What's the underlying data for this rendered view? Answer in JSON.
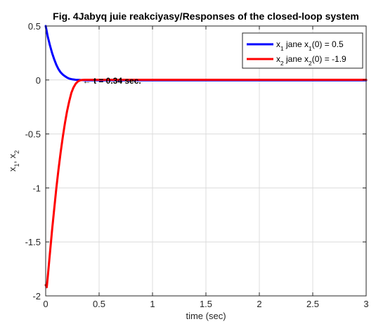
{
  "chart_data": {
    "type": "line",
    "title": "Fig. 4Jabyq juie reakciyasy/Responses of the closed-loop system",
    "xlabel": "time (sec)",
    "ylabel": {
      "parts": [
        {
          "text": "x"
        },
        {
          "text": "1",
          "sub": true
        },
        {
          "text": ", x"
        },
        {
          "text": "2",
          "sub": true
        }
      ]
    },
    "xlim": [
      0,
      3
    ],
    "ylim": [
      -2,
      0.5
    ],
    "xticks": [
      {
        "value": 0,
        "label": "0"
      },
      {
        "value": 0.5,
        "label": "0.5"
      },
      {
        "value": 1,
        "label": "1"
      },
      {
        "value": 1.5,
        "label": "1.5"
      },
      {
        "value": 2,
        "label": "2"
      },
      {
        "value": 2.5,
        "label": "2.5"
      },
      {
        "value": 3,
        "label": "3"
      }
    ],
    "yticks": [
      {
        "value": 0.5,
        "label": "0.5"
      },
      {
        "value": 0,
        "label": "0"
      },
      {
        "value": -0.5,
        "label": "-0.5"
      },
      {
        "value": -1,
        "label": "-1"
      },
      {
        "value": -1.5,
        "label": "-1.5"
      },
      {
        "value": -2,
        "label": "-2"
      }
    ],
    "grid": true,
    "legend_position": "top-right",
    "series": [
      {
        "color": "#0000ff",
        "legend": [
          {
            "text": "x"
          },
          {
            "text": "1",
            "sub": true
          },
          {
            "text": " jane x"
          },
          {
            "text": "1",
            "sub": true
          },
          {
            "text": "(0) = 0.5"
          }
        ],
        "x": [
          0,
          0.02,
          0.04,
          0.06,
          0.08,
          0.1,
          0.12,
          0.14,
          0.16,
          0.18,
          0.2,
          0.22,
          0.25,
          0.28,
          0.32,
          0.36,
          0.4,
          0.5,
          1,
          1.5,
          2,
          2.5,
          3
        ],
        "y": [
          0.5,
          0.4,
          0.32,
          0.25,
          0.19,
          0.14,
          0.1,
          0.07,
          0.05,
          0.035,
          0.022,
          0.013,
          0.006,
          0.002,
          0,
          -0.002,
          -0.003,
          -0.003,
          -0.003,
          -0.003,
          -0.003,
          -0.003,
          -0.003
        ]
      },
      {
        "color": "#ff0000",
        "legend": [
          {
            "text": "x"
          },
          {
            "text": "2",
            "sub": true
          },
          {
            "text": " jane x"
          },
          {
            "text": "2",
            "sub": true
          },
          {
            "text": "(0) = -1.9"
          }
        ],
        "x": [
          0,
          0.01,
          0.02,
          0.04,
          0.06,
          0.08,
          0.1,
          0.12,
          0.14,
          0.16,
          0.18,
          0.2,
          0.22,
          0.24,
          0.26,
          0.28,
          0.3,
          0.32,
          0.34,
          0.36,
          0.4,
          0.5,
          1,
          1.5,
          2,
          2.5,
          3
        ],
        "y": [
          -1.9,
          -1.92,
          -1.82,
          -1.6,
          -1.39,
          -1.19,
          -1.0,
          -0.83,
          -0.67,
          -0.53,
          -0.4,
          -0.29,
          -0.2,
          -0.12,
          -0.07,
          -0.035,
          -0.015,
          -0.004,
          0.0,
          0.002,
          0.002,
          0.002,
          0.002,
          0.002,
          0.002,
          0.002,
          0.002
        ]
      }
    ],
    "annotation": {
      "text": "← t = 0.34 sec.",
      "x": 0.34,
      "y": 0
    }
  }
}
